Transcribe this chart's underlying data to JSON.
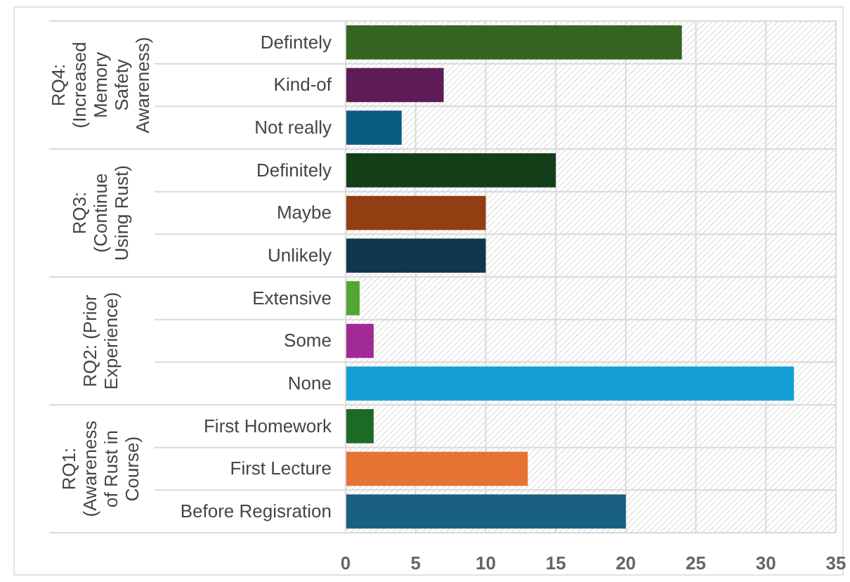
{
  "chart_data": {
    "type": "bar",
    "orientation": "horizontal",
    "categories": [
      "Defintely",
      "Kind-of",
      "Not really",
      "Definitely",
      "Maybe",
      "Unlikely",
      "Extensive",
      "Some",
      "None",
      "First Homework",
      "First Lecture",
      "Before Regisration"
    ],
    "values": [
      24,
      7,
      4,
      15,
      10,
      10,
      1,
      2,
      32,
      2,
      13,
      20
    ],
    "colors": [
      "#336520",
      "#5f1b55",
      "#0a5c7e",
      "#123f18",
      "#913e12",
      "#0f364d",
      "#52a633",
      "#a12a94",
      "#139fd6",
      "#1c6a26",
      "#e67332",
      "#185f81"
    ],
    "annotations": [
      "RQ4: (Increased Memory Safety Awareness)",
      "RQ3: (Continue Using Rust)",
      "RQ2: (Prior Experience)",
      "RQ1: (Awareness of Rust in Course)"
    ],
    "xlim": [
      0,
      35
    ],
    "xticks": [
      0,
      5,
      10,
      15,
      20,
      25,
      30,
      35
    ],
    "grid": "x"
  }
}
